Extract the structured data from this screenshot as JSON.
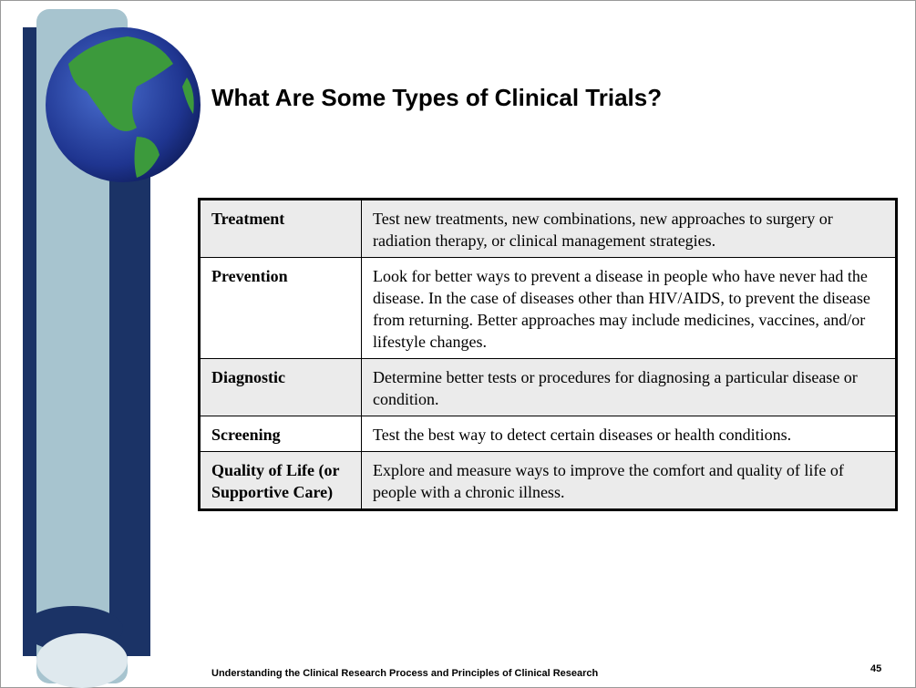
{
  "header": {
    "title": "What Are Some Types of Clinical Trials?"
  },
  "table": {
    "rows": [
      [
        "Treatment",
        "Test new treatments, new combinations, new approaches to surgery or radiation therapy, or clinical management strategies."
      ],
      [
        "Prevention",
        "Look for better ways to prevent a disease in people who have never had the disease. In the case of diseases other than HIV/AIDS, to prevent the disease from returning. Better approaches may include medicines, vaccines, and/or lifestyle changes."
      ],
      [
        "Diagnostic",
        "Determine better tests or procedures for diagnosing a particular disease or condition."
      ],
      [
        "Screening",
        "Test the best way to detect certain diseases or health conditions."
      ],
      [
        "Quality of Life (or Supportive Care)",
        "Explore and measure ways to improve the comfort and quality of life of people with a chronic illness."
      ]
    ]
  },
  "footer": {
    "text": "Understanding the Clinical Research Process and Principles of Clinical Research",
    "page": "45"
  }
}
